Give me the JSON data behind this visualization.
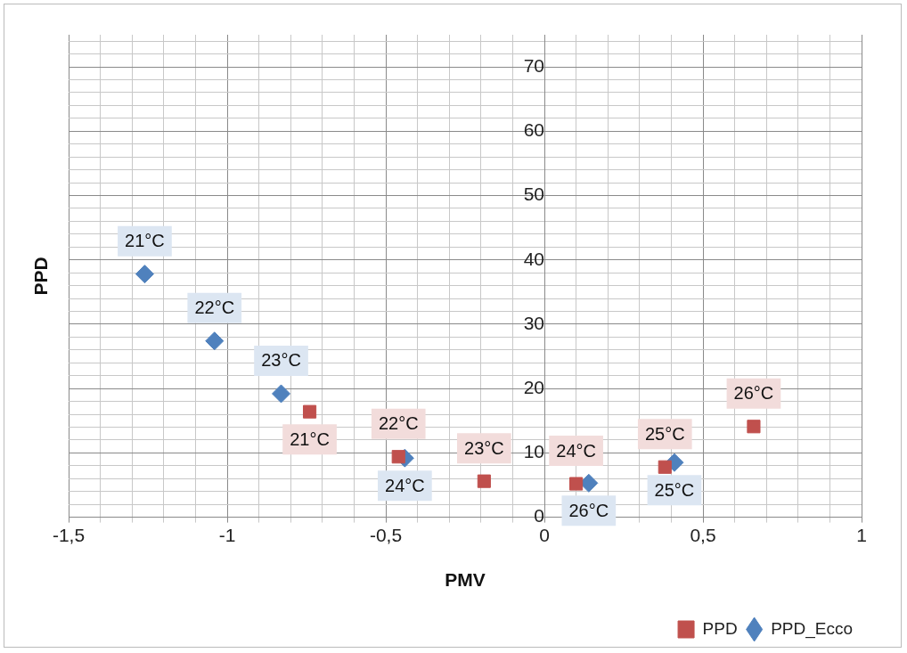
{
  "chart_data": {
    "type": "scatter",
    "xlabel": "PMV",
    "ylabel": "PPD",
    "xlim": [
      -1.5,
      1
    ],
    "ylim": [
      0,
      75
    ],
    "xticks": [
      {
        "value": -1.5,
        "label": "-1,5"
      },
      {
        "value": -1.4,
        "label": null
      },
      {
        "value": -1.3,
        "label": null
      },
      {
        "value": -1.2,
        "label": null
      },
      {
        "value": -1.1,
        "label": null
      },
      -1,
      {
        "value": -0.9,
        "label": null
      },
      {
        "value": -0.8,
        "label": null
      },
      {
        "value": -0.7,
        "label": null
      },
      {
        "value": -0.6,
        "label": null
      },
      {
        "value": -0.5,
        "label": "-0,5"
      },
      {
        "value": -0.4,
        "label": null
      },
      {
        "value": -0.3,
        "label": null
      },
      {
        "value": -0.2,
        "label": null
      },
      {
        "value": -0.1,
        "label": null
      },
      0,
      {
        "value": 0.1,
        "label": null
      },
      {
        "value": 0.2,
        "label": null
      },
      {
        "value": 0.3,
        "label": null
      },
      {
        "value": 0.4,
        "label": null
      },
      {
        "value": 0.5,
        "label": "0,5"
      },
      {
        "value": 0.6,
        "label": null
      },
      {
        "value": 0.7,
        "label": null
      },
      {
        "value": 0.8,
        "label": null
      },
      {
        "value": 0.9,
        "label": null
      },
      1
    ],
    "yticks": [
      0,
      {
        "value": 2,
        "label": null
      },
      {
        "value": 4,
        "label": null
      },
      {
        "value": 6,
        "label": null
      },
      {
        "value": 8,
        "label": null
      },
      10,
      {
        "value": 12,
        "label": null
      },
      {
        "value": 14,
        "label": null
      },
      {
        "value": 16,
        "label": null
      },
      {
        "value": 18,
        "label": null
      },
      20,
      {
        "value": 22,
        "label": null
      },
      {
        "value": 24,
        "label": null
      },
      {
        "value": 26,
        "label": null
      },
      {
        "value": 28,
        "label": null
      },
      30,
      {
        "value": 32,
        "label": null
      },
      {
        "value": 34,
        "label": null
      },
      {
        "value": 36,
        "label": null
      },
      {
        "value": 38,
        "label": null
      },
      40,
      {
        "value": 42,
        "label": null
      },
      {
        "value": 44,
        "label": null
      },
      {
        "value": 46,
        "label": null
      },
      {
        "value": 48,
        "label": null
      },
      50,
      {
        "value": 52,
        "label": null
      },
      {
        "value": 54,
        "label": null
      },
      {
        "value": 56,
        "label": null
      },
      {
        "value": 58,
        "label": null
      },
      60,
      {
        "value": 62,
        "label": null
      },
      {
        "value": 64,
        "label": null
      },
      {
        "value": 66,
        "label": null
      },
      {
        "value": 68,
        "label": null
      },
      70,
      {
        "value": 72,
        "label": null
      },
      {
        "value": 74,
        "label": null
      }
    ],
    "grid": true,
    "legend": "bottom right",
    "annotations": [
      {
        "text": "21°C",
        "x": -1.26,
        "y": 37.8
      },
      {
        "text": "22°C",
        "x": -1.04,
        "y": 27.4
      },
      {
        "text": "23°C",
        "x": -0.83,
        "y": 19.2
      },
      {
        "text": "21°C",
        "x": -0.74,
        "y": 16.4
      },
      {
        "text": "22°C",
        "x": -0.46,
        "y": 9.4
      },
      {
        "text": "23°C",
        "x": -0.19,
        "y": 5.6
      },
      {
        "text": "24°C",
        "x": 0.1,
        "y": 5.2
      },
      {
        "text": "25°C",
        "x": 0.38,
        "y": 7.8
      },
      {
        "text": "26°C",
        "x": 0.66,
        "y": 14.1
      },
      {
        "text": "24°C",
        "x": -0.44,
        "y": 9.2
      },
      {
        "text": "26°C",
        "x": 0.14,
        "y": 5.3
      },
      {
        "text": "25°C",
        "x": 0.41,
        "y": 8.5
      }
    ],
    "series": [
      {
        "name": "PPD_Ecco",
        "color": "#4f81bd",
        "marker": "diamond",
        "x": [
          -1.26,
          -1.04,
          -0.83,
          -0.44,
          0.14,
          0.41
        ],
        "values": [
          37.8,
          27.4,
          19.2,
          9.2,
          5.3,
          8.5
        ]
      },
      {
        "name": "PPD",
        "color": "#c0504d",
        "marker": "square",
        "x": [
          -0.74,
          -0.46,
          -0.19,
          0.1,
          0.38,
          0.66
        ],
        "values": [
          16.4,
          9.4,
          5.6,
          5.2,
          7.8,
          14.1
        ]
      }
    ]
  }
}
